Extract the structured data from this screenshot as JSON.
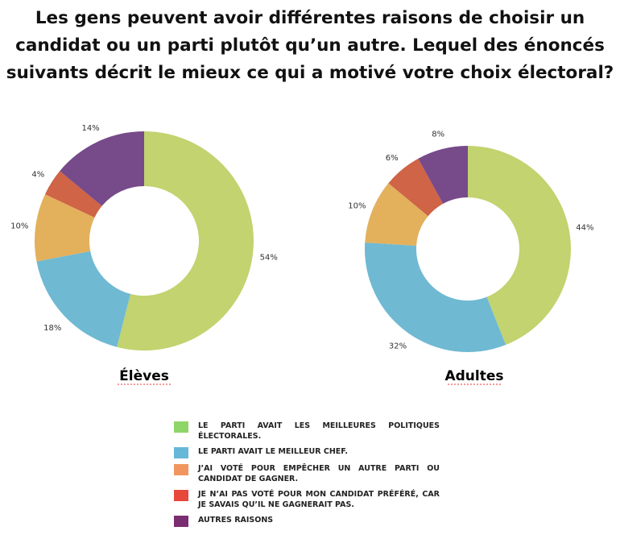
{
  "title": "Les gens peuvent avoir différentes raisons de choisir un candidat ou un parti plutôt qu’un autre. Lequel des énoncés suivants décrit le mieux ce qui a motivé votre choix électoral?",
  "chart_data": [
    {
      "type": "pie",
      "title": "Élèves",
      "categories": [
        "LE PARTI AVAIT LES MEILLEURES POLITIQUES ÉLECTORALES.",
        "LE PARTI AVAIT LE MEILLEUR CHEF.",
        "J’AI VOTÉ POUR EMPÊCHER UN AUTRE PARTI OU CANDIDAT DE GAGNER.",
        "JE N’AI PAS VOTÉ POUR MON CANDIDAT PRÉFÉRÉ, CAR JE SAVAIS QU’IL NE GAGNERAIT PAS.",
        "AUTRES RAISONS"
      ],
      "values": [
        54,
        18,
        10,
        4,
        14
      ],
      "labels": [
        "54%",
        "18%",
        "10%",
        "4%",
        "14%"
      ]
    },
    {
      "type": "pie",
      "title": "Adultes",
      "categories": [
        "LE PARTI AVAIT LES MEILLEURES POLITIQUES ÉLECTORALES.",
        "LE PARTI AVAIT LE MEILLEUR CHEF.",
        "J’AI VOTÉ POUR EMPÊCHER UN AUTRE PARTI OU CANDIDAT DE GAGNER.",
        "JE N’AI PAS VOTÉ POUR MON CANDIDAT PRÉFÉRÉ, CAR JE SAVAIS QU’IL NE GAGNERAIT PAS.",
        "AUTRES RAISONS"
      ],
      "values": [
        44,
        32,
        10,
        6,
        8
      ],
      "labels": [
        "44%",
        "32%",
        "10%",
        "6%",
        "8%"
      ]
    }
  ],
  "colors": [
    "#c2d36f",
    "#70b9d3",
    "#e3b05c",
    "#cf6446",
    "#774a8a"
  ],
  "legend": [
    {
      "label": "LE PARTI AVAIT LES MEILLEURES POLITIQUES ÉLECTORALES.",
      "color": "#8fd56a"
    },
    {
      "label": "LE PARTI AVAIT LE MEILLEUR CHEF.",
      "color": "#67b8d8"
    },
    {
      "label": "J’AI VOTÉ POUR EMPÊCHER UN AUTRE PARTI OU CANDIDAT DE GAGNER.",
      "color": "#f0965e"
    },
    {
      "label": "JE N’AI PAS VOTÉ POUR MON CANDIDAT PRÉFÉRÉ, CAR JE SAVAIS QU’IL NE GAGNERAIT PAS.",
      "color": "#e8473c"
    },
    {
      "label": "AUTRES RAISONS",
      "color": "#7b2d72"
    }
  ]
}
